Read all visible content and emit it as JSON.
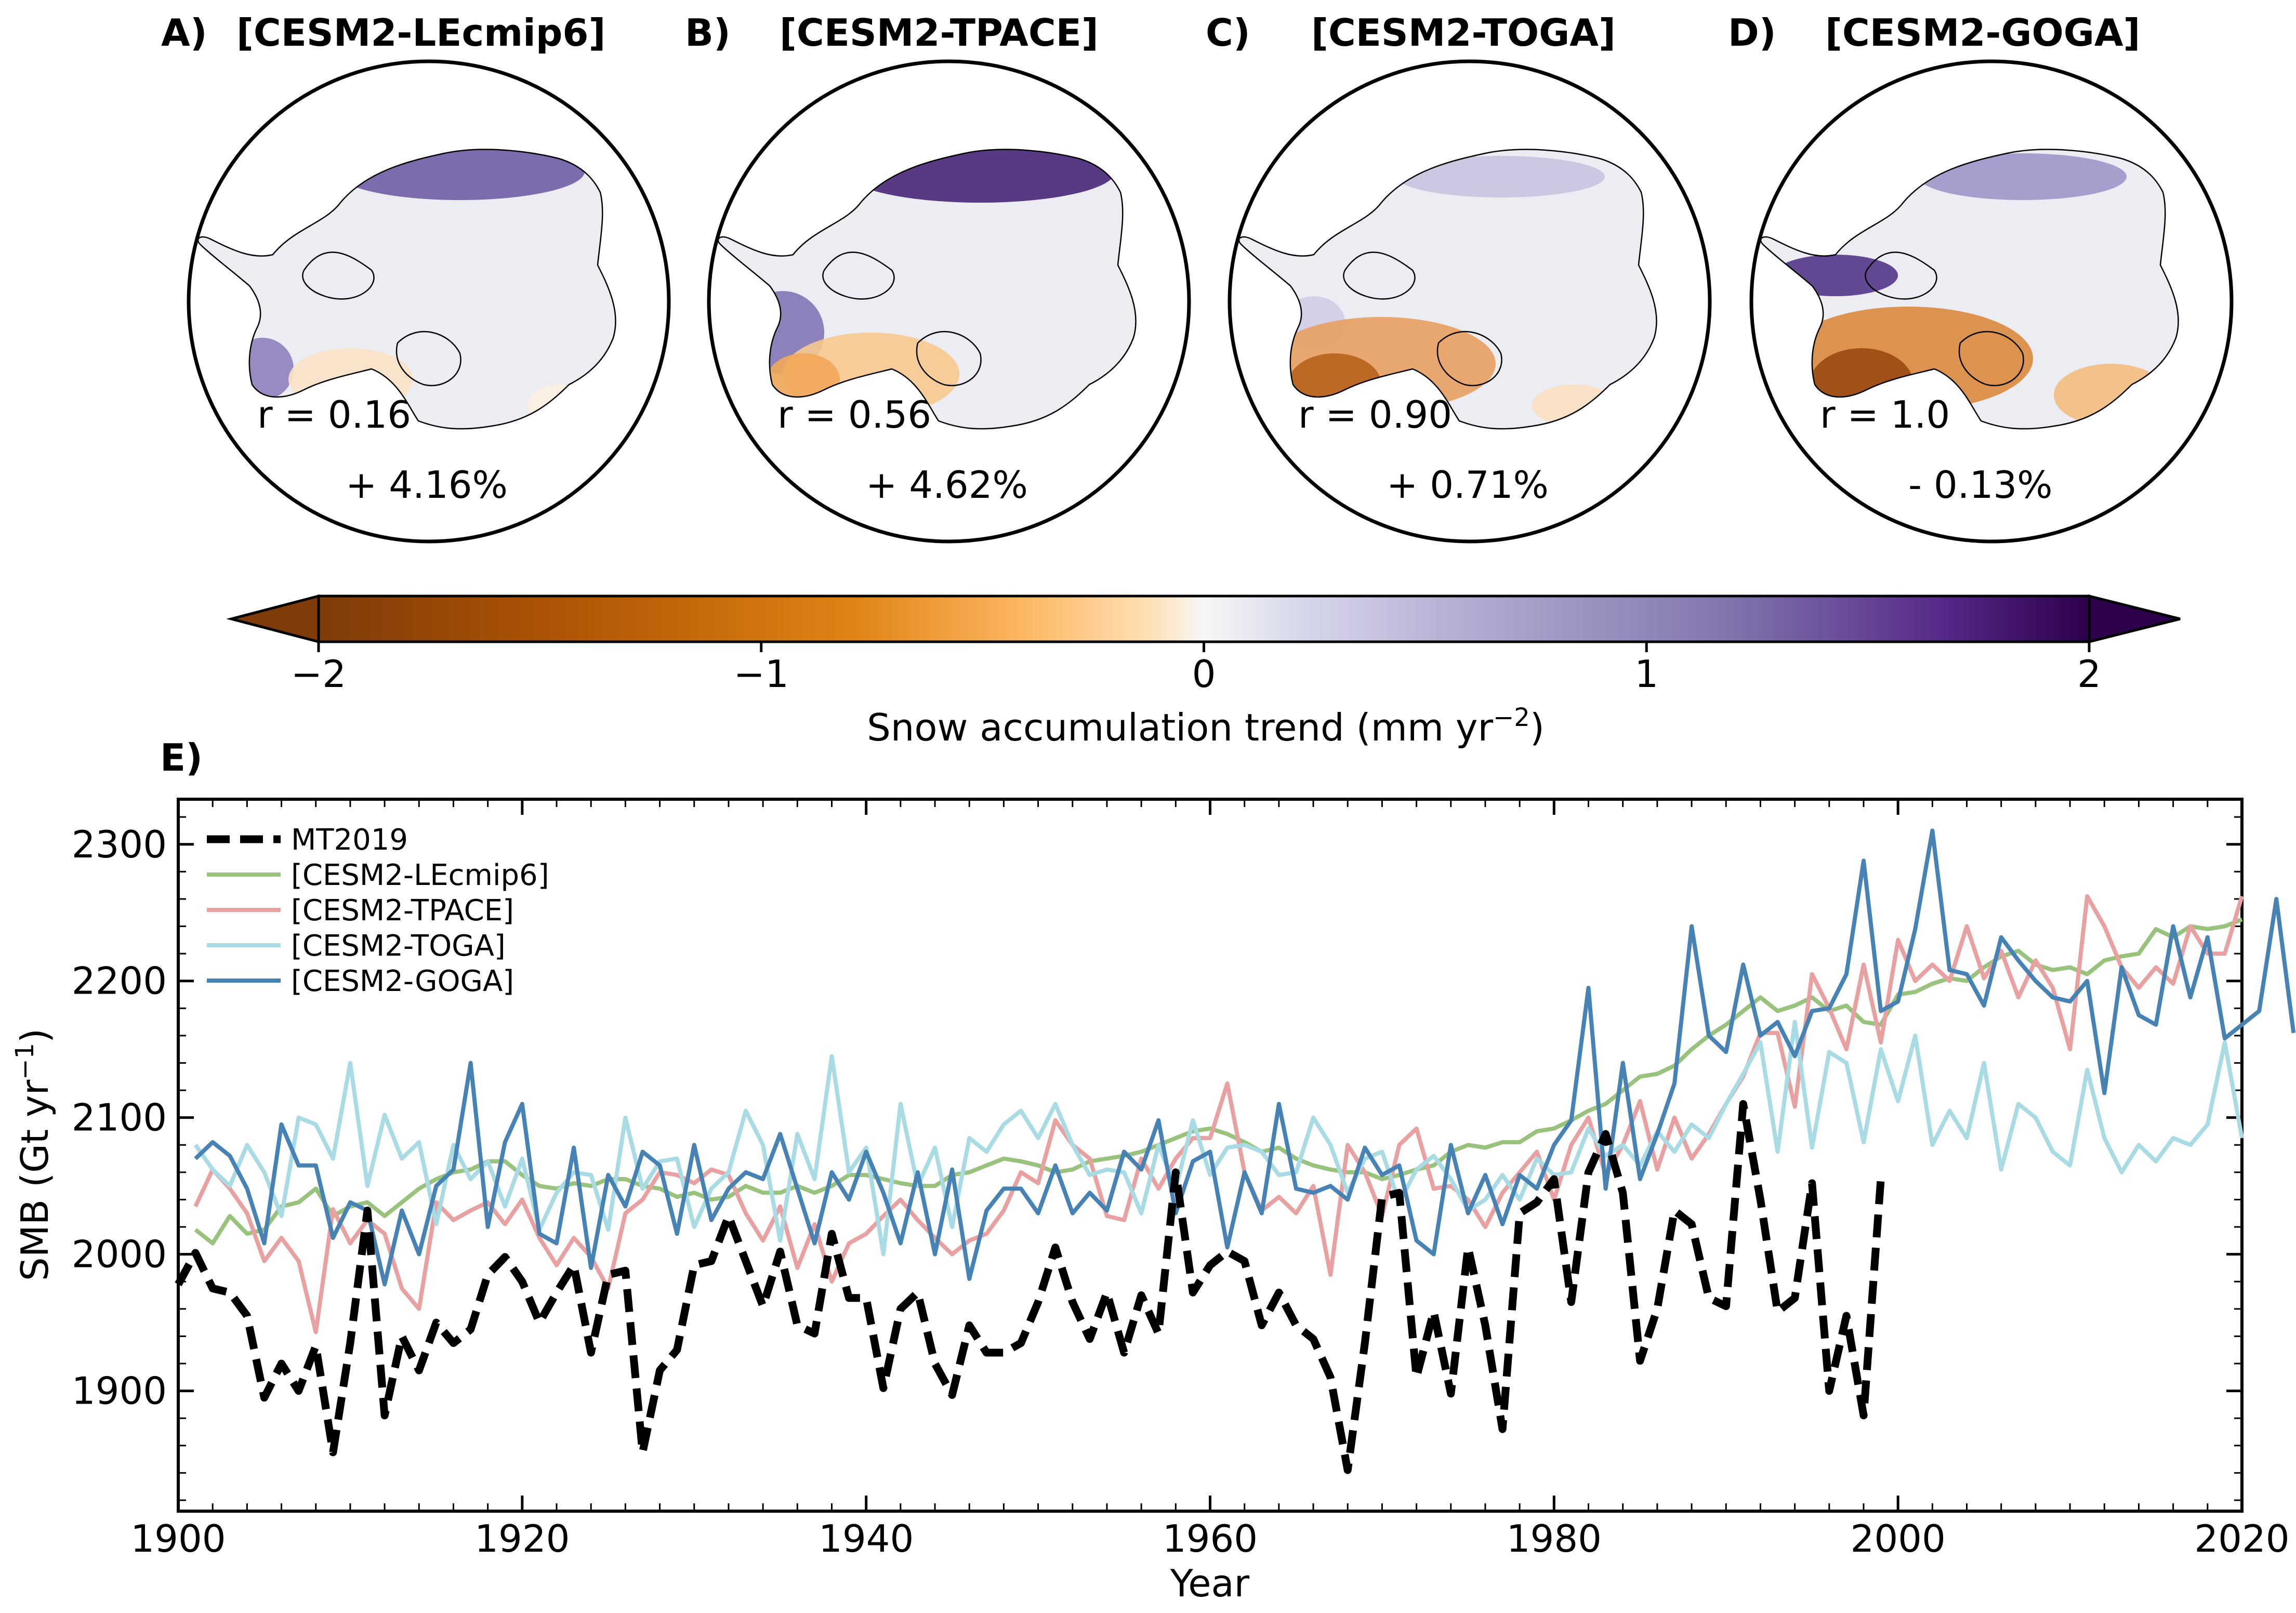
{
  "panels": [
    {
      "letter": "A)",
      "name": "[CESM2-LEcmip6]",
      "r_text": "r = 0.16",
      "pct_text": "+ 4.16%"
    },
    {
      "letter": "B)",
      "name": "[CESM2-TPACE]",
      "r_text": "r = 0.56",
      "pct_text": "+ 4.62%"
    },
    {
      "letter": "C)",
      "name": "[CESM2-TOGA]",
      "r_text": "r = 0.90",
      "pct_text": "+ 0.71%"
    },
    {
      "letter": "D)",
      "name": "[CESM2-GOGA]",
      "r_text": "r = 1.0",
      "pct_text": "- 0.13%"
    }
  ],
  "colorbar": {
    "label": "Snow accumulation trend (mm yr",
    "label_sup": "−2",
    "label_close": ")",
    "ticks": [
      "−2",
      "−1",
      "0",
      "1",
      "2"
    ],
    "range": [
      -2,
      2
    ],
    "colormap": "PuOr_r",
    "extend": "both"
  },
  "panel_e": {
    "letter": "E)"
  },
  "chart_data": {
    "type": "line",
    "title": "",
    "xlabel": "Year",
    "ylabel": "SMB (Gt yr",
    "ylabel_sup": "−1",
    "ylabel_close": ")",
    "xlim": [
      1900,
      2020
    ],
    "ylim": [
      1812,
      2333
    ],
    "xticks": [
      1900,
      1920,
      1940,
      1960,
      1980,
      2000,
      2020
    ],
    "yticks": [
      1900,
      2000,
      2100,
      2200,
      2300
    ],
    "legend_position": "top-left",
    "series": [
      {
        "name": "MT2019",
        "color": "#000000",
        "style": "dashed",
        "x_start": 1900,
        "values": [
          1978,
          2001,
          1975,
          1972,
          1955,
          1895,
          1920,
          1900,
          1933,
          1855,
          1935,
          2032,
          1882,
          1940,
          1915,
          1950,
          1935,
          1945,
          1985,
          1998,
          1980,
          1950,
          1972,
          1992,
          1928,
          1985,
          1988,
          1855,
          1915,
          1930,
          1992,
          1995,
          2028,
          1995,
          1962,
          2002,
          1948,
          1942,
          2015,
          1968,
          1968,
          1902,
          1960,
          1972,
          1920,
          1897,
          1948,
          1928,
          1928,
          1935,
          1965,
          2005,
          1965,
          1938,
          1972,
          1928,
          1970,
          1942,
          2060,
          1972,
          1992,
          2002,
          1995,
          1948,
          1972,
          1948,
          1938,
          1910,
          1842,
          1935,
          2042,
          2045,
          1910,
          1958,
          1898,
          2005,
          1948,
          1872,
          2030,
          2038,
          2055,
          1965,
          2060,
          2088,
          2045,
          1922,
          1960,
          2032,
          2022,
          1968,
          1962,
          2110,
          2040,
          1958,
          1968,
          2052,
          1900,
          1955,
          1882,
          2055
        ]
      },
      {
        "name": "[CESM2-LEcmip6]",
        "color": "#99c27c",
        "style": "solid",
        "x_start": 1901,
        "values": [
          2018,
          2008,
          2028,
          2015,
          2018,
          2035,
          2038,
          2048,
          2028,
          2035,
          2038,
          2028,
          2038,
          2048,
          2055,
          2060,
          2062,
          2068,
          2068,
          2058,
          2050,
          2048,
          2052,
          2050,
          2055,
          2055,
          2050,
          2048,
          2042,
          2045,
          2040,
          2042,
          2050,
          2045,
          2045,
          2050,
          2045,
          2050,
          2058,
          2058,
          2055,
          2052,
          2050,
          2050,
          2058,
          2060,
          2065,
          2070,
          2068,
          2065,
          2060,
          2062,
          2068,
          2070,
          2072,
          2075,
          2080,
          2085,
          2090,
          2092,
          2088,
          2082,
          2075,
          2078,
          2070,
          2065,
          2062,
          2060,
          2060,
          2055,
          2058,
          2062,
          2065,
          2075,
          2080,
          2078,
          2082,
          2082,
          2090,
          2092,
          2098,
          2105,
          2110,
          2120,
          2130,
          2132,
          2138,
          2150,
          2160,
          2168,
          2178,
          2188,
          2178,
          2182,
          2188,
          2178,
          2182,
          2170,
          2168,
          2190,
          2192,
          2198,
          2202,
          2200,
          2210,
          2218,
          2222,
          2212,
          2208,
          2210,
          2205,
          2215,
          2218,
          2220,
          2238,
          2232,
          2240,
          2238,
          2240,
          2245
        ]
      },
      {
        "name": "[CESM2-TPACE]",
        "color": "#e9a0a0",
        "style": "solid",
        "x_start": 1901,
        "values": [
          2035,
          2062,
          2048,
          2030,
          1995,
          2012,
          1995,
          1943,
          2033,
          2008,
          2025,
          2015,
          1975,
          1960,
          2038,
          2025,
          2032,
          2038,
          2022,
          2040,
          2012,
          1992,
          2012,
          1998,
          1975,
          2030,
          2040,
          2060,
          2058,
          2052,
          2062,
          2058,
          2030,
          2010,
          2035,
          1990,
          2022,
          1980,
          2008,
          2015,
          2028,
          2040,
          2025,
          2012,
          2000,
          2010,
          2015,
          2032,
          2060,
          2052,
          2098,
          2080,
          2070,
          2028,
          2025,
          2070,
          2048,
          2070,
          2085,
          2085,
          2125,
          2060,
          2032,
          2042,
          2030,
          2050,
          1985,
          2080,
          2060,
          2028,
          2080,
          2092,
          2048,
          2050,
          2040,
          2020,
          2045,
          2060,
          2075,
          2040,
          2080,
          2100,
          2058,
          2080,
          2112,
          2062,
          2100,
          2070,
          2088,
          2110,
          2130,
          2162,
          2162,
          2108,
          2205,
          2180,
          2150,
          2212,
          2155,
          2230,
          2200,
          2212,
          2200,
          2240,
          2202,
          2222,
          2188,
          2215,
          2195,
          2150,
          2262,
          2240,
          2210,
          2195,
          2210,
          2198,
          2240,
          2220,
          2220,
          2262
        ]
      },
      {
        "name": "[CESM2-TOGA]",
        "color": "#a8dbe3",
        "style": "solid",
        "x_start": 1901,
        "values": [
          2080,
          2062,
          2050,
          2080,
          2060,
          2028,
          2100,
          2095,
          2070,
          2140,
          2050,
          2102,
          2070,
          2082,
          2022,
          2080,
          2055,
          2068,
          2035,
          2070,
          2018,
          2045,
          2060,
          2058,
          2018,
          2100,
          2048,
          2068,
          2070,
          2020,
          2048,
          2060,
          2105,
          2080,
          2010,
          2088,
          2055,
          2145,
          2060,
          2078,
          2000,
          2110,
          2050,
          2078,
          2020,
          2085,
          2075,
          2095,
          2105,
          2085,
          2110,
          2080,
          2058,
          2062,
          2060,
          2030,
          2080,
          2048,
          2098,
          2058,
          2078,
          2080,
          2075,
          2058,
          2060,
          2100,
          2080,
          2045,
          2070,
          2075,
          2038,
          2062,
          2072,
          2055,
          2032,
          2040,
          2058,
          2040,
          2070,
          2058,
          2060,
          2092,
          2072,
          2080,
          2065,
          2090,
          2075,
          2095,
          2085,
          2110,
          2132,
          2155,
          2075,
          2170,
          2078,
          2148,
          2140,
          2082,
          2150,
          2112,
          2160,
          2080,
          2105,
          2085,
          2140,
          2062,
          2110,
          2100,
          2075,
          2065,
          2135,
          2085,
          2060,
          2080,
          2068,
          2085,
          2080,
          2095,
          2155,
          2085
        ]
      },
      {
        "name": "[CESM2-GOGA]",
        "color": "#4682b4",
        "style": "solid",
        "x_start": 1901,
        "values": [
          2070,
          2082,
          2072,
          2048,
          2008,
          2095,
          2065,
          2065,
          2012,
          2038,
          2032,
          1978,
          2032,
          2000,
          2050,
          2062,
          2140,
          2020,
          2082,
          2110,
          2015,
          2008,
          2078,
          1990,
          2058,
          2035,
          2075,
          2065,
          2015,
          2080,
          2025,
          2048,
          2060,
          2055,
          2088,
          2048,
          2008,
          2060,
          2040,
          2075,
          2045,
          2008,
          2060,
          2000,
          2062,
          1982,
          2032,
          2048,
          2048,
          2030,
          2065,
          2030,
          2045,
          2032,
          2075,
          2062,
          2098,
          2030,
          2068,
          2075,
          2005,
          2060,
          2030,
          2110,
          2048,
          2045,
          2050,
          2040,
          2078,
          2058,
          2065,
          2010,
          2000,
          2080,
          2030,
          2058,
          2022,
          2058,
          2048,
          2080,
          2098,
          2195,
          2048,
          2140,
          2055,
          2088,
          2125,
          2240,
          2160,
          2148,
          2212,
          2160,
          2170,
          2145,
          2178,
          2180,
          2205,
          2288,
          2178,
          2185,
          2238,
          2310,
          2208,
          2205,
          2182,
          2232,
          2215,
          2200,
          2188,
          2185,
          2200,
          2118,
          2210,
          2175,
          2168,
          2240,
          2188,
          2232,
          2158,
          2168,
          2178,
          2260,
          2162
        ]
      }
    ]
  }
}
